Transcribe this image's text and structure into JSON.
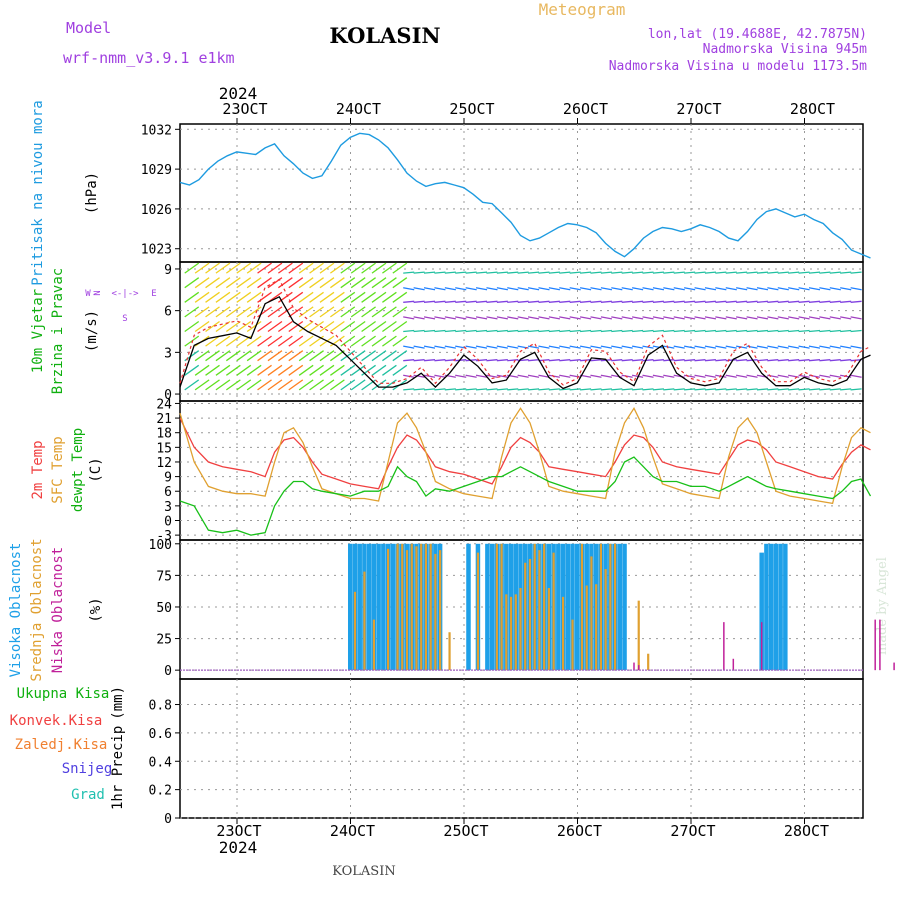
{
  "header": {
    "model_label": "Model",
    "model_name": "wrf-nmm_v3.9.1  e1km",
    "station": "KOLASIN",
    "meteogram": "Meteogram",
    "lonlat": "lon,lat (19.4688E, 42.7875N)",
    "elev": "Nadmorska Visina 945m",
    "elev_model": "Nadmorska Visina u modelu 1173.5m",
    "year": "2024",
    "footer_station": "KOLASIN",
    "credit": "made by Angel"
  },
  "colors": {
    "pressure": "#1e9be0",
    "temp2m": "#f04040",
    "sfc": "#e0a030",
    "dewpt": "#18c018",
    "high_cloud": "#1ea0e8",
    "mid_cloud": "#e0a030",
    "low_cloud": "#c0209a",
    "wind_text": "#10b010",
    "purple": "#a040e0",
    "gold": "#e8b860"
  },
  "chart_data": [
    {
      "type": "line",
      "panel": "pressure",
      "ylabel": "Pritisak na nivou mora",
      "unit": "(hPa)",
      "yticks": [
        1023,
        1026,
        1029,
        1032
      ],
      "ylim": [
        1022,
        1032.4
      ],
      "x_hours": [
        0,
        2,
        4,
        6,
        8,
        10,
        12,
        14,
        16,
        18,
        20,
        22,
        24,
        26,
        28,
        30,
        32,
        34,
        36,
        38,
        40,
        42,
        44,
        46,
        48,
        50,
        52,
        54,
        56,
        58,
        60,
        62,
        64,
        66,
        68,
        70,
        72,
        74,
        76,
        78,
        80,
        82,
        84,
        86,
        88,
        90,
        92,
        94,
        96,
        98,
        100,
        102,
        104,
        106,
        108,
        110,
        112,
        114,
        116,
        118,
        120,
        122,
        124,
        126,
        128,
        130,
        132,
        134,
        136,
        138,
        140,
        142,
        144,
        146
      ],
      "series": [
        {
          "values": [
            1028.0,
            1027.8,
            1028.2,
            1029.0,
            1029.6,
            1030.0,
            1030.3,
            1030.2,
            1030.1,
            1030.6,
            1030.9,
            1030.0,
            1029.4,
            1028.7,
            1028.3,
            1028.5,
            1029.6,
            1030.8,
            1031.4,
            1031.7,
            1031.6,
            1031.2,
            1030.6,
            1029.7,
            1028.7,
            1028.1,
            1027.7,
            1027.9,
            1028.0,
            1027.8,
            1027.6,
            1027.1,
            1026.5,
            1026.4,
            1025.7,
            1025.0,
            1024.0,
            1023.6,
            1023.8,
            1024.2,
            1024.6,
            1024.9,
            1024.8,
            1024.6,
            1024.2,
            1023.4,
            1022.8,
            1022.4,
            1023.0,
            1023.8,
            1024.3,
            1024.6,
            1024.5,
            1024.3,
            1024.5,
            1024.8,
            1024.6,
            1024.3,
            1023.8,
            1023.6,
            1024.3,
            1025.2,
            1025.8,
            1026.0,
            1025.7,
            1025.4,
            1025.6,
            1025.2,
            1024.9,
            1024.2,
            1023.7,
            1022.9,
            1022.6,
            1022.3
          ]
        }
      ]
    },
    {
      "type": "line",
      "panel": "wind",
      "ylabel": [
        "10m Vjetar",
        "Brzina i Pravac"
      ],
      "unit": "(m/s)",
      "yticks": [
        0,
        3,
        6,
        9
      ],
      "ylim": [
        -0.5,
        9.5
      ],
      "compass": {
        "n": "N",
        "w": "W",
        "e": "E",
        "s": "S"
      },
      "x_hours": [
        0,
        3,
        6,
        9,
        12,
        15,
        18,
        21,
        24,
        27,
        30,
        33,
        36,
        39,
        42,
        45,
        48,
        51,
        54,
        57,
        60,
        63,
        66,
        69,
        72,
        75,
        78,
        81,
        84,
        87,
        90,
        93,
        96,
        99,
        102,
        105,
        108,
        111,
        114,
        117,
        120,
        123,
        126,
        129,
        132,
        135,
        138,
        141,
        144,
        146
      ],
      "series": [
        {
          "name": "speed",
          "values": [
            0.5,
            3.5,
            4.0,
            4.2,
            4.4,
            4.0,
            6.5,
            7.0,
            5.2,
            4.5,
            4.0,
            3.5,
            2.5,
            1.5,
            0.5,
            0.5,
            0.8,
            1.5,
            0.5,
            1.5,
            2.8,
            2.0,
            0.8,
            1.0,
            2.5,
            3.0,
            1.2,
            0.4,
            0.8,
            2.6,
            2.5,
            1.2,
            0.6,
            2.8,
            3.5,
            1.5,
            0.8,
            0.6,
            0.8,
            2.5,
            3.0,
            1.5,
            0.6,
            0.6,
            1.2,
            0.8,
            0.6,
            1.0,
            2.5,
            2.8
          ]
        }
      ]
    },
    {
      "type": "line",
      "panel": "temperature",
      "ylabel": [
        "2m Temp",
        "SFC Temp",
        "dewpt Temp"
      ],
      "unit": "(C)",
      "yticks": [
        -3,
        0,
        3,
        6,
        9,
        12,
        15,
        18,
        21,
        24
      ],
      "ylim": [
        -4,
        24.5
      ],
      "x_hours": [
        0,
        3,
        6,
        9,
        12,
        15,
        18,
        20,
        22,
        24,
        26,
        28,
        30,
        33,
        36,
        39,
        42,
        44,
        46,
        48,
        50,
        52,
        54,
        57,
        60,
        63,
        66,
        68,
        70,
        72,
        74,
        76,
        78,
        81,
        84,
        87,
        90,
        92,
        94,
        96,
        98,
        100,
        102,
        105,
        108,
        111,
        114,
        116,
        118,
        120,
        122,
        124,
        126,
        129,
        132,
        135,
        138,
        140,
        142,
        144,
        146
      ],
      "series": [
        {
          "name": "2m Temp",
          "values": [
            21,
            15,
            12,
            11,
            10.5,
            10,
            9,
            14,
            16.5,
            17,
            15,
            12,
            9.5,
            8.5,
            7.5,
            7,
            6.5,
            11,
            15,
            17.5,
            16.5,
            14,
            11,
            10,
            9.5,
            8.5,
            7.5,
            11,
            15,
            17,
            16,
            14,
            11,
            10.5,
            10,
            9.5,
            9,
            12,
            15.5,
            17.5,
            17,
            15,
            12,
            11,
            10.5,
            10,
            9.5,
            12.5,
            15.5,
            16.5,
            16,
            14.5,
            12,
            11,
            10,
            9,
            8.5,
            11.5,
            14,
            15.5,
            14.5
          ]
        },
        {
          "name": "SFC Temp",
          "values": [
            22,
            12,
            7,
            6,
            5.5,
            5.5,
            5,
            12,
            18,
            19,
            16,
            11,
            6.5,
            5.5,
            4.5,
            4.5,
            4,
            12,
            20,
            22,
            19,
            14,
            8,
            6.5,
            5.5,
            5,
            4.5,
            13,
            20,
            23,
            20,
            14,
            7,
            6,
            5.5,
            5,
            4.5,
            14,
            20,
            23,
            19,
            13,
            7.5,
            6.5,
            5.5,
            5,
            4.5,
            13,
            19,
            21,
            18,
            12,
            6,
            5,
            4.5,
            4,
            3.5,
            11,
            17,
            19,
            18
          ]
        },
        {
          "name": "dewpt Temp",
          "values": [
            4,
            3,
            -2,
            -2.5,
            -2,
            -3,
            -2.5,
            3,
            6,
            8,
            8,
            6.5,
            6,
            5.5,
            5,
            6,
            6,
            7,
            11,
            9,
            8,
            5,
            6.5,
            6,
            7,
            8,
            9,
            9,
            10,
            11,
            10,
            9,
            8,
            7,
            6,
            6,
            6,
            8,
            12,
            13,
            11,
            9,
            8,
            8,
            7,
            7,
            6,
            7,
            8,
            9,
            8,
            7,
            6.5,
            6,
            5.5,
            5,
            4.5,
            6,
            8,
            8.5,
            5
          ]
        }
      ]
    },
    {
      "type": "bar",
      "panel": "cloud",
      "ylabel": [
        "Visoka Oblacnost",
        "Srednja Oblacnost",
        "Niska Oblacnost"
      ],
      "unit": "(%)",
      "yticks": [
        0,
        25,
        50,
        75,
        100
      ],
      "ylim": [
        -7,
        103
      ],
      "series": [
        {
          "name": "Visoka Oblacnost",
          "x": [
            36,
            37,
            38,
            39,
            40,
            41,
            42,
            43,
            44,
            45,
            46,
            47,
            48,
            49,
            50,
            51,
            52,
            53,
            54,
            55,
            61,
            63,
            65,
            66,
            67,
            68,
            69,
            70,
            71,
            72,
            73,
            74,
            75,
            76,
            77,
            78,
            79,
            80,
            81,
            82,
            83,
            84,
            85,
            86,
            87,
            88,
            89,
            90,
            91,
            92,
            93,
            94,
            123,
            124,
            125,
            126,
            127,
            128
          ],
          "values": [
            100,
            100,
            100,
            100,
            100,
            100,
            100,
            100,
            100,
            100,
            100,
            100,
            100,
            100,
            100,
            100,
            100,
            100,
            100,
            100,
            100,
            100,
            100,
            100,
            100,
            100,
            100,
            100,
            100,
            100,
            100,
            100,
            100,
            100,
            100,
            100,
            100,
            100,
            100,
            100,
            100,
            100,
            100,
            100,
            100,
            100,
            100,
            100,
            100,
            100,
            100,
            100,
            93,
            100,
            100,
            100,
            100,
            100
          ]
        },
        {
          "name": "Srednja Oblacnost",
          "x": [
            37,
            39,
            41,
            44,
            46,
            47,
            48,
            49,
            50,
            51,
            52,
            53,
            54,
            55,
            57,
            63,
            67,
            68,
            69,
            70,
            71,
            72,
            73,
            74,
            75,
            76,
            77,
            78,
            79,
            81,
            83,
            85,
            86,
            87,
            88,
            89,
            90,
            91,
            92,
            97,
            99
          ],
          "values": [
            62,
            78,
            40,
            96,
            100,
            100,
            95,
            100,
            98,
            100,
            100,
            100,
            92,
            95,
            30,
            93,
            100,
            100,
            60,
            58,
            60,
            65,
            85,
            88,
            100,
            95,
            100,
            65,
            93,
            58,
            40,
            100,
            67,
            90,
            68,
            100,
            80,
            100,
            100,
            55,
            13
          ]
        },
        {
          "name": "Niska Oblacnost",
          "x": [
            96,
            97,
            115,
            117,
            123,
            147,
            148,
            151
          ],
          "values": [
            6,
            4,
            38,
            9,
            38,
            40,
            40,
            6
          ]
        }
      ]
    },
    {
      "type": "bar",
      "panel": "precip",
      "ylabel": "1hr Precip",
      "unit": "(mm)",
      "yticks": [
        0,
        0.2,
        0.4,
        0.6,
        0.8
      ],
      "ylim": [
        0,
        0.98
      ],
      "legend": [
        "Ukupna Kisa",
        "Konvek.Kisa",
        "Zaledj.Kisa",
        "Snijeg",
        "Grad"
      ],
      "values": []
    }
  ],
  "x_axis": {
    "ticks": [
      "23OCT",
      "24OCT",
      "25OCT",
      "26OCT",
      "27OCT",
      "28OCT"
    ],
    "year": "2024"
  }
}
